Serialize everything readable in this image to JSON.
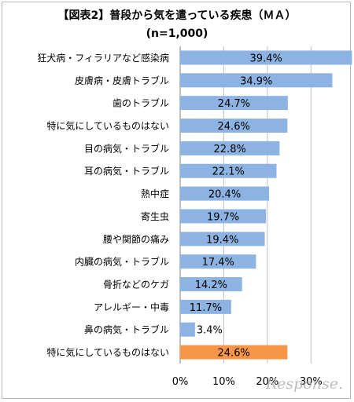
{
  "header": {
    "title": "【図表2】普段から気を遣っている疾患（ＭＡ）",
    "subtitle": "(n=1,000)"
  },
  "watermark": "Response.",
  "colors": {
    "bar": "#8db3e2",
    "highlight": "#f79646",
    "grid": "#bfbfbf",
    "axis": "#808080"
  },
  "chart_data": {
    "type": "bar",
    "orientation": "horizontal",
    "categories": [
      "狂犬病・フィラリアなど感染病",
      "皮膚病・皮膚トラブル",
      "歯のトラブル",
      "特に気にしているものはない",
      "目の病気・トラブル",
      "耳の病気・トラブル",
      "熱中症",
      "寄生虫",
      "腰や関節の痛み",
      "内臓の病気・トラブル",
      "骨折などのケガ",
      "アレルギー・中毒",
      "鼻の病気・トラブル",
      "特に気にしているものはない"
    ],
    "values": [
      39.4,
      34.9,
      24.7,
      24.6,
      22.8,
      22.1,
      20.4,
      19.7,
      19.4,
      17.4,
      14.2,
      11.7,
      3.4,
      24.6
    ],
    "value_labels": [
      "39.4%",
      "34.9%",
      "24.7%",
      "24.6%",
      "22.8%",
      "22.1%",
      "20.4%",
      "19.7%",
      "19.4%",
      "17.4%",
      "14.2%",
      "11.7%",
      "3.4%",
      "24.6%"
    ],
    "highlight_index": 13,
    "xlim": [
      0,
      35
    ],
    "xticks": [
      0,
      10,
      20,
      30
    ],
    "xtick_labels": [
      "0%",
      "10%",
      "20%",
      "30%"
    ],
    "grid": true
  }
}
